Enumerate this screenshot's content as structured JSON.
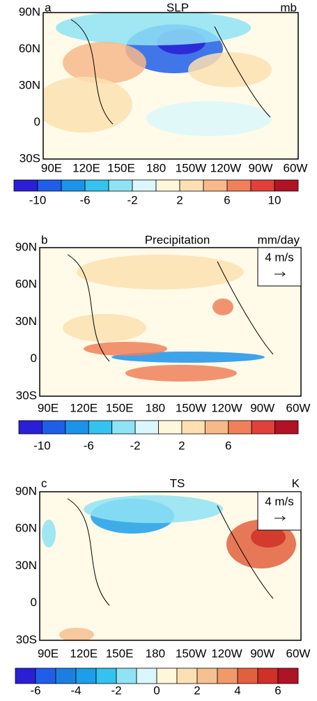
{
  "panels": [
    {
      "label": "a",
      "title": "SLP",
      "units": "mb",
      "lat_labels": [
        "90N",
        "60N",
        "30N",
        "0",
        "30S"
      ],
      "lon_labels": [
        "90E",
        "120E",
        "150E",
        "180",
        "150W",
        "120W",
        "90W",
        "60W"
      ],
      "colorbar": {
        "colors": [
          "#2a1fd6",
          "#1f5ee8",
          "#1c93ea",
          "#33c3ee",
          "#8fe3f5",
          "#dcf7fb",
          "#fff7dc",
          "#fde0b2",
          "#f7b98a",
          "#f0805a",
          "#e2403a",
          "#b01325"
        ],
        "labels": [
          "-10",
          "-6",
          "-2",
          "2",
          "6",
          "10"
        ]
      }
    },
    {
      "label": "b",
      "title": "Precipitation",
      "units": "mm/day",
      "vector_ref": "4 m/s",
      "lat_labels": [
        "90N",
        "60N",
        "30N",
        "0",
        "30S"
      ],
      "lon_labels": [
        "90E",
        "120E",
        "150E",
        "180",
        "150W",
        "120W",
        "90W",
        "60W"
      ],
      "colorbar": {
        "colors": [
          "#2a1fd6",
          "#1f5ee8",
          "#1c93ea",
          "#33c3ee",
          "#8fe3f5",
          "#dcf7fb",
          "#fff7dc",
          "#fde0b2",
          "#f7b98a",
          "#f0805a",
          "#e2403a",
          "#b01325"
        ],
        "labels": [
          "-10",
          "-6",
          "-2",
          "2",
          "6"
        ]
      }
    },
    {
      "label": "c",
      "title": "TS",
      "units": "K",
      "vector_ref": "4 m/s",
      "lat_labels": [
        "90N",
        "60N",
        "30N",
        "0",
        "30S"
      ],
      "lon_labels": [
        "90E",
        "120E",
        "150E",
        "180",
        "150W",
        "120W",
        "90W",
        "60W"
      ],
      "colorbar": {
        "colors": [
          "#2a1fd6",
          "#1f5ee8",
          "#1c7fe0",
          "#1c9ee8",
          "#33c3ee",
          "#8fe3f5",
          "#dcf7fb",
          "#fff7dc",
          "#fde0b2",
          "#f7c090",
          "#f09a6a",
          "#e2603e",
          "#d03028",
          "#b01325"
        ],
        "labels": [
          "-6",
          "-4",
          "-2",
          "0",
          "2",
          "4",
          "6"
        ]
      }
    }
  ]
}
